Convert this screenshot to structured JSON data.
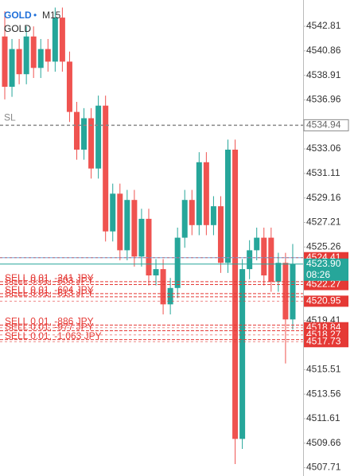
{
  "chart_data": {
    "type": "candlestick",
    "symbol": "GOLD",
    "separator": "•",
    "timeframe": "M15",
    "subtitle": "GOLD",
    "open": [
      4542,
      4538,
      4541,
      4539,
      4542,
      4539.5,
      4541,
      4540,
      4543.5,
      4540,
      4536,
      4533,
      4535.5,
      4531.5,
      4536.5,
      4526.5,
      4529.5,
      4525,
      4529,
      4524.5,
      4527.5,
      4523,
      4523.5,
      4520.7,
      4522,
      4526,
      4529,
      4527,
      4532,
      4527,
      4528.5,
      4524,
      4533,
      4510,
      4523.5,
      4525,
      4526,
      4526,
      4522.5,
      4524,
      4519.5
    ],
    "high": [
      4544,
      4541.8,
      4541.8,
      4542.8,
      4542.8,
      4541.8,
      4541.8,
      4544.3,
      4544.3,
      4540.8,
      4536.8,
      4536.3,
      4536.3,
      4537.3,
      4537.3,
      4530.3,
      4530.3,
      4529.8,
      4529.8,
      4528.3,
      4528.3,
      4524.3,
      4524.3,
      4522.8,
      4526.8,
      4529.8,
      4529.8,
      4532.8,
      4532.8,
      4529.3,
      4529.3,
      4533.8,
      4533.8,
      4524.3,
      4525.8,
      4526.8,
      4526.8,
      4526.8,
      4524.8,
      4524.8,
      4525.5
    ],
    "low": [
      4537,
      4537.2,
      4538.2,
      4538.2,
      4538.7,
      4538.7,
      4539.2,
      4539.2,
      4539.2,
      4535.2,
      4532.2,
      4532.2,
      4530.7,
      4530.7,
      4525.7,
      4525.7,
      4524.2,
      4524.2,
      4523.7,
      4523.7,
      4522.2,
      4522.2,
      4519.9,
      4519.9,
      4521.2,
      4525.2,
      4526.2,
      4526.2,
      4526.2,
      4526.2,
      4523.2,
      4523.2,
      4508,
      4509.2,
      4522.7,
      4524.2,
      4522.2,
      4521.7,
      4521.7,
      4516,
      4518.7
    ],
    "close": [
      4538,
      4541,
      4539,
      4542,
      4539.5,
      4541,
      4540,
      4543.5,
      4540,
      4536,
      4533,
      4535.5,
      4531.5,
      4536.5,
      4526.5,
      4529.5,
      4525,
      4529,
      4524.5,
      4527.5,
      4523,
      4523.5,
      4520.7,
      4522,
      4526,
      4529,
      4527,
      4532,
      4527,
      4528.5,
      4524,
      4533,
      4510,
      4523.5,
      4525,
      4526,
      4523,
      4522.5,
      4524,
      4519.5,
      4523.9
    ],
    "colors": {
      "up": "#26a69a",
      "down": "#ef5350"
    },
    "ylim": [
      4507.05,
      4544.9
    ],
    "yticks": [
      4542.81,
      4540.86,
      4538.91,
      4536.96,
      4533.06,
      4531.11,
      4529.16,
      4527.21,
      4525.26,
      4519.41,
      4515.51,
      4513.56,
      4511.61,
      4509.66,
      4507.71
    ],
    "grid": false,
    "stop_loss": {
      "label": "SL",
      "price": 4534.94
    },
    "orders": [
      {
        "label": "SELL 0.01, -241 JPY",
        "price": 4522.5
      },
      {
        "label": "SELL 0.01, -303 JPY",
        "price": 4522.27
      },
      {
        "label": "SELL 0.01, -604 JPY",
        "price": 4521.55
      },
      {
        "label": "SELL 0.01, -613 JPY",
        "price": 4521.3
      },
      {
        "label": "SELL 0.01, -886 JPY",
        "price": 4519.05
      },
      {
        "label": "SELL 0.01, -977 JPY",
        "price": 4518.6
      },
      {
        "label": "SELL 0.01, -1,063 JPY",
        "price": 4517.9
      }
    ],
    "price_tags": [
      4524.41,
      4522.27,
      4520.95,
      4518.84,
      4518.27,
      4517.73
    ],
    "ask_line": 4524.41,
    "bid": {
      "value": 4523.9,
      "label": "4523.90"
    },
    "bar_timer": "08:26"
  }
}
